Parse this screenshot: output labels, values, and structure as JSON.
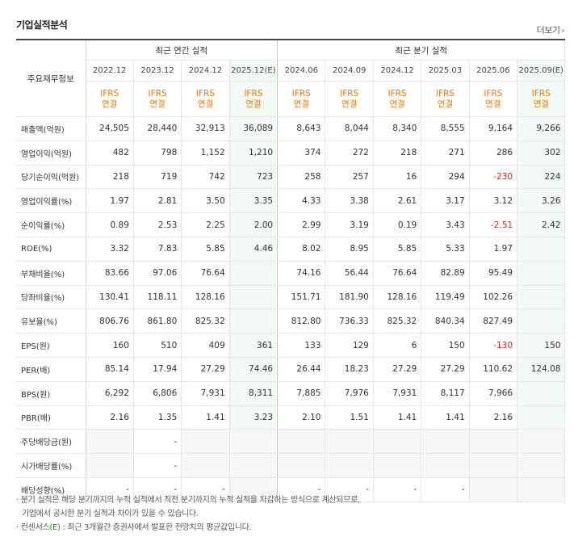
{
  "title": "기업실적분석",
  "more_label": "더보기",
  "header": {
    "row_label": "주요재무정보",
    "annual_group": "최근 연간 실적",
    "quarter_group": "최근 분기 실적",
    "periods": [
      "2022.12",
      "2023.12",
      "2024.12",
      "2025.12(E)",
      "2024.06",
      "2024.09",
      "2024.12",
      "2025.03",
      "2025.06",
      "2025.09(E)"
    ],
    "ifrs_line1": "IFRS",
    "ifrs_line2": "연결"
  },
  "rows": [
    {
      "label": "매출액(억원)",
      "values": [
        "24,505",
        "28,440",
        "32,913",
        "36,089",
        "8,643",
        "8,044",
        "8,340",
        "8,555",
        "9,164",
        "9,266"
      ]
    },
    {
      "label": "영업이익(억원)",
      "values": [
        "482",
        "798",
        "1,152",
        "1,210",
        "374",
        "272",
        "218",
        "271",
        "286",
        "302"
      ]
    },
    {
      "label": "당기순이익(억원)",
      "values": [
        "218",
        "719",
        "742",
        "723",
        "258",
        "257",
        "16",
        "294",
        "-230",
        "224"
      ]
    },
    {
      "label": "영업이익률(%)",
      "values": [
        "1.97",
        "2.81",
        "3.50",
        "3.35",
        "4.33",
        "3.38",
        "2.61",
        "3.17",
        "3.12",
        "3.26"
      ]
    },
    {
      "label": "순이익률(%)",
      "values": [
        "0.89",
        "2.53",
        "2.25",
        "2.00",
        "2.99",
        "3.19",
        "0.19",
        "3.43",
        "-2.51",
        "2.42"
      ]
    },
    {
      "label": "ROE(%)",
      "values": [
        "3.32",
        "7.83",
        "5.85",
        "4.46",
        "8.02",
        "8.95",
        "5.85",
        "5.33",
        "1.97",
        ""
      ]
    },
    {
      "label": "부채비율(%)",
      "values": [
        "83.66",
        "97.06",
        "76.64",
        "",
        "74.16",
        "56.44",
        "76.64",
        "82.89",
        "95.49",
        ""
      ]
    },
    {
      "label": "당좌비율(%)",
      "values": [
        "130.41",
        "118.11",
        "128.16",
        "",
        "151.71",
        "181.90",
        "128.16",
        "119.49",
        "102.26",
        ""
      ]
    },
    {
      "label": "유보율(%)",
      "values": [
        "806.76",
        "861.80",
        "825.32",
        "",
        "812.80",
        "736.33",
        "825.32",
        "840.34",
        "827.49",
        ""
      ]
    },
    {
      "label": "EPS(원)",
      "values": [
        "160",
        "510",
        "409",
        "361",
        "133",
        "129",
        "6",
        "150",
        "-130",
        "150"
      ]
    },
    {
      "label": "PER(배)",
      "values": [
        "85.14",
        "17.94",
        "27.29",
        "74.46",
        "26.44",
        "18.23",
        "27.29",
        "27.29",
        "110.62",
        "124.08"
      ]
    },
    {
      "label": "BPS(원)",
      "values": [
        "6,292",
        "6,806",
        "7,931",
        "8,311",
        "7,885",
        "7,976",
        "7,931",
        "8,117",
        "7,966",
        ""
      ]
    },
    {
      "label": "PBR(배)",
      "values": [
        "2.16",
        "1.35",
        "1.41",
        "3.23",
        "2.10",
        "1.51",
        "1.41",
        "1.41",
        "2.16",
        ""
      ]
    },
    {
      "label": "주당배당금(원)",
      "values": [
        "",
        "-",
        "",
        "",
        "",
        "",
        "",
        "",
        "",
        ""
      ]
    },
    {
      "label": "시가배당률(%)",
      "values": [
        "",
        "-",
        "",
        "",
        "",
        "",
        "",
        "",
        "",
        ""
      ]
    },
    {
      "label": "배당성향(%)",
      "values": [
        "-",
        "-",
        "-",
        "",
        "-",
        "-",
        "-",
        "-",
        "",
        ""
      ]
    }
  ],
  "notes": {
    "line1": "분기 실적은 해당 분기까지의 누적 실적에서 직전 분기까지의 누적 실적을 차감하는 방식으로 계산되므로,",
    "line2": "기업에서 공시한 분기 실적과 차이가 있을 수 있습니다.",
    "line3_a": "컨센서스",
    "line3_e": "(E)",
    "line3_b": " : 최근 3개월간 증권사에서 발표한 전망치의 평균값입니다."
  },
  "colors": {
    "ifrs": "#f07800",
    "negative": "#e02020",
    "estimate_bg": "#f3f9f3"
  }
}
